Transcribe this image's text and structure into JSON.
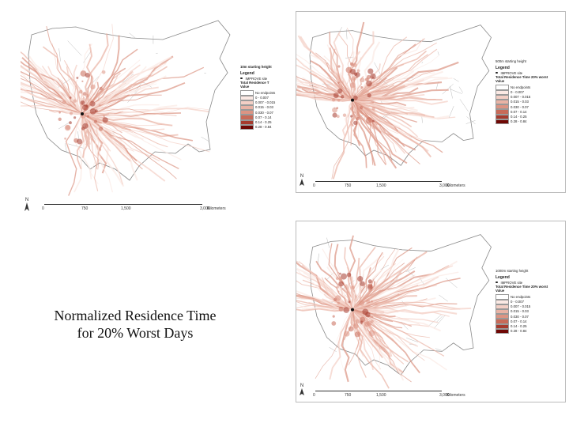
{
  "caption": {
    "line1": "Normalized Residence Time",
    "line2": "for 20% Worst Days"
  },
  "colors": {
    "low": "#f6ddd6",
    "mid": "#d98a7b",
    "high": "#7a0b05",
    "border": "#8d8d8d"
  },
  "panels": [
    {
      "starting_height": "10m starting height",
      "legend_title": "Legend",
      "site_label": "IMPROVE site",
      "trt_title": "Total Residence T",
      "value_label": "Value",
      "classes": [
        "No endpoints",
        "0 - 0.007",
        "0.007 - 0.015",
        "0.015 - 0.03",
        "0.030 - 0.07",
        "0.07 - 0.14",
        "0.14 - 0.25",
        "0.28 - 0.84"
      ],
      "scale": [
        "0",
        "750",
        "1,500",
        "3,000",
        "Kilometers"
      ],
      "north": "N"
    },
    {
      "starting_height": "500m starting height",
      "legend_title": "Legend",
      "site_label": "IMPROVE site",
      "trt_title": "Total Residence Time 20% worst",
      "value_label": "Value",
      "classes": [
        "No endpoints",
        "0 - 0.007",
        "0.007 - 0.015",
        "0.015 - 0.03",
        "0.030 - 0.07",
        "0.07 - 0.14",
        "0.14 - 0.25",
        "0.28 - 0.84"
      ],
      "scale": [
        "0",
        "750",
        "1,500",
        "3,000",
        "Kilometers"
      ],
      "north": "N"
    },
    {
      "starting_height": "1000m starting height",
      "legend_title": "Legend",
      "site_label": "IMPROVE site",
      "trt_title": "Total Residence Time 20% worst",
      "value_label": "Value",
      "classes": [
        "No endpoints",
        "0 - 0.007",
        "0.007 - 0.015",
        "0.015 - 0.03",
        "0.030 - 0.07",
        "0.07 - 0.14",
        "0.14 - 0.25",
        "0.28 - 0.84"
      ],
      "scale": [
        "0",
        "750",
        "1,500",
        "3,000",
        "Kilometers"
      ],
      "north": "N"
    }
  ],
  "class_colors": [
    "#ffffff",
    "#fbe9e4",
    "#f3cfc5",
    "#e9b3a5",
    "#dc9483",
    "#c86a58",
    "#a63a2d",
    "#6f0805"
  ]
}
